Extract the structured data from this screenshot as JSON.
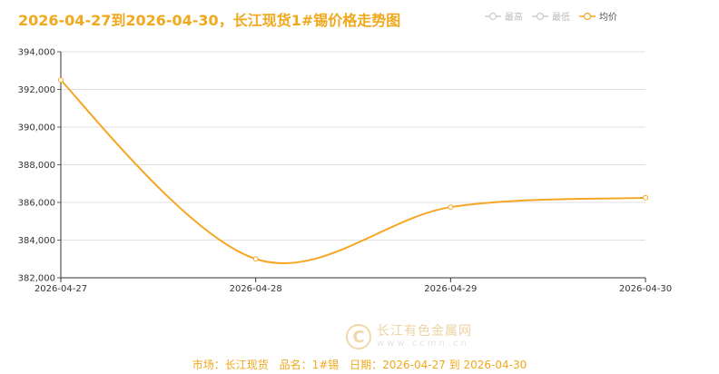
{
  "title": "2026-04-27到2026-04-30，长江现货1#锡价格走势图",
  "legend": [
    {
      "label": "最高",
      "active": false,
      "color": "#cccccc"
    },
    {
      "label": "最低",
      "active": false,
      "color": "#cccccc"
    },
    {
      "label": "均价",
      "active": true,
      "color": "#f5a623"
    }
  ],
  "chart_data": {
    "type": "line",
    "title": "2026-04-27到2026-04-30，长江现货1#锡价格走势图",
    "xlabel": "",
    "ylabel": "",
    "categories": [
      "2026-04-27",
      "2026-04-28",
      "2026-04-29",
      "2026-04-30"
    ],
    "series": [
      {
        "name": "均价",
        "values": [
          392500,
          383000,
          385750,
          386250
        ],
        "color": "#f5a623",
        "smooth": true
      }
    ],
    "ylim": [
      382000,
      394000
    ],
    "yticks": [
      382000,
      384000,
      386000,
      388000,
      390000,
      392000,
      394000
    ],
    "ytick_labels": [
      "382,000",
      "384,000",
      "386,000",
      "388,000",
      "390,000",
      "392,000",
      "394,000"
    ],
    "grid": true,
    "legend_position": "top-right"
  },
  "watermark": {
    "name": "长江有色金属网",
    "url": "www.ccmn.cn",
    "logo_glyph": "C"
  },
  "footer": {
    "market": "市场：长江现货",
    "product": "品名：1#锡",
    "date": "日期：2026-04-27 到 2026-04-30"
  }
}
